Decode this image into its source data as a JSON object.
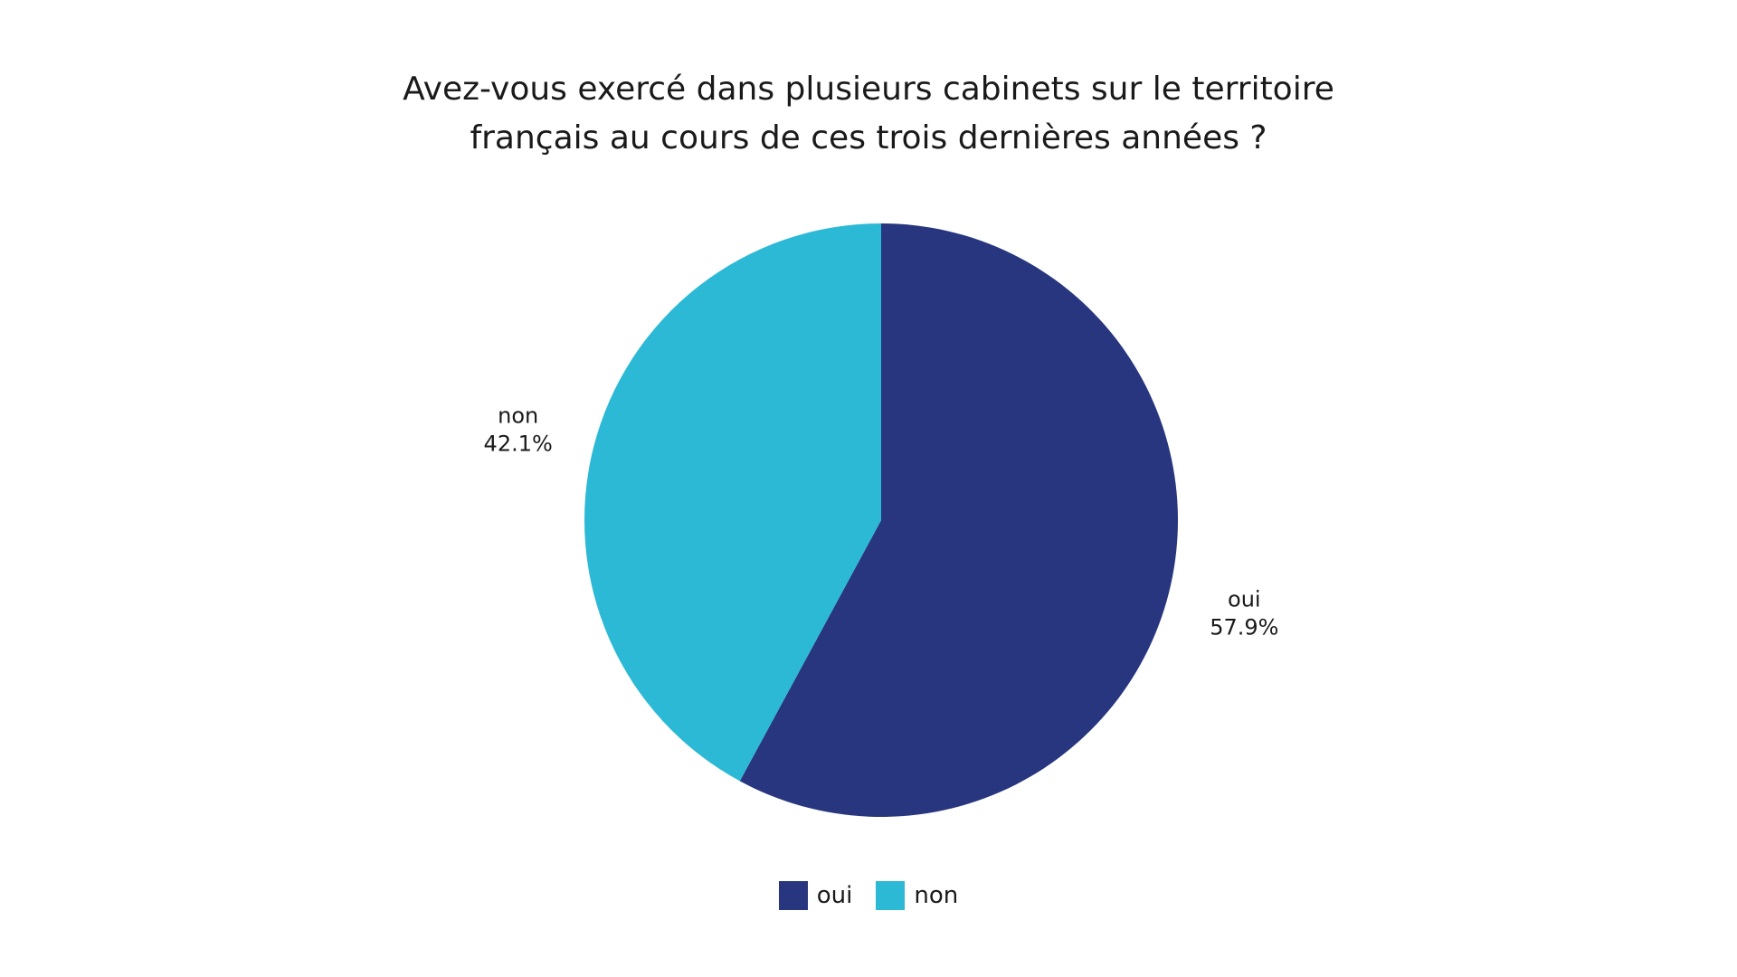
{
  "chart_data": {
    "type": "pie",
    "title_lines": [
      "Avez-vous exercé dans plusieurs cabinets sur le territoire",
      "français au cours de ces trois dernières années ?"
    ],
    "slices": [
      {
        "label": "oui",
        "value": 57.9,
        "value_label": "57.9%",
        "color": "#27367e"
      },
      {
        "label": "non",
        "value": 42.1,
        "value_label": "42.1%",
        "color": "#2bb9d5"
      }
    ],
    "legend": {
      "placement": "bottom-center",
      "entries": [
        "oui",
        "non"
      ]
    }
  }
}
